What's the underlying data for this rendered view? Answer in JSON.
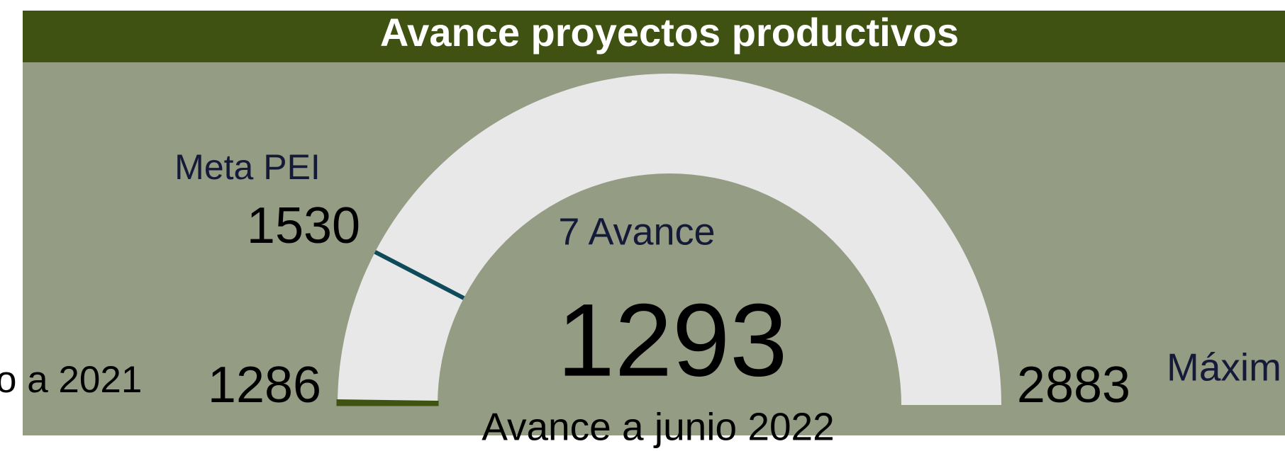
{
  "chart_data": {
    "type": "gauge",
    "title": "Avance proyectos productivos",
    "min": 1286,
    "max": 2883,
    "value": 1293,
    "target": 1530,
    "target_label": "Meta PEI",
    "value_label": "Avance a junio 2022",
    "min_label": "o a  2021",
    "max_label": "Máxim",
    "annotation": "7 Avance",
    "color": "#3f5212",
    "track_color": "#e8e8e8",
    "target_color": "#0d4a5a"
  }
}
